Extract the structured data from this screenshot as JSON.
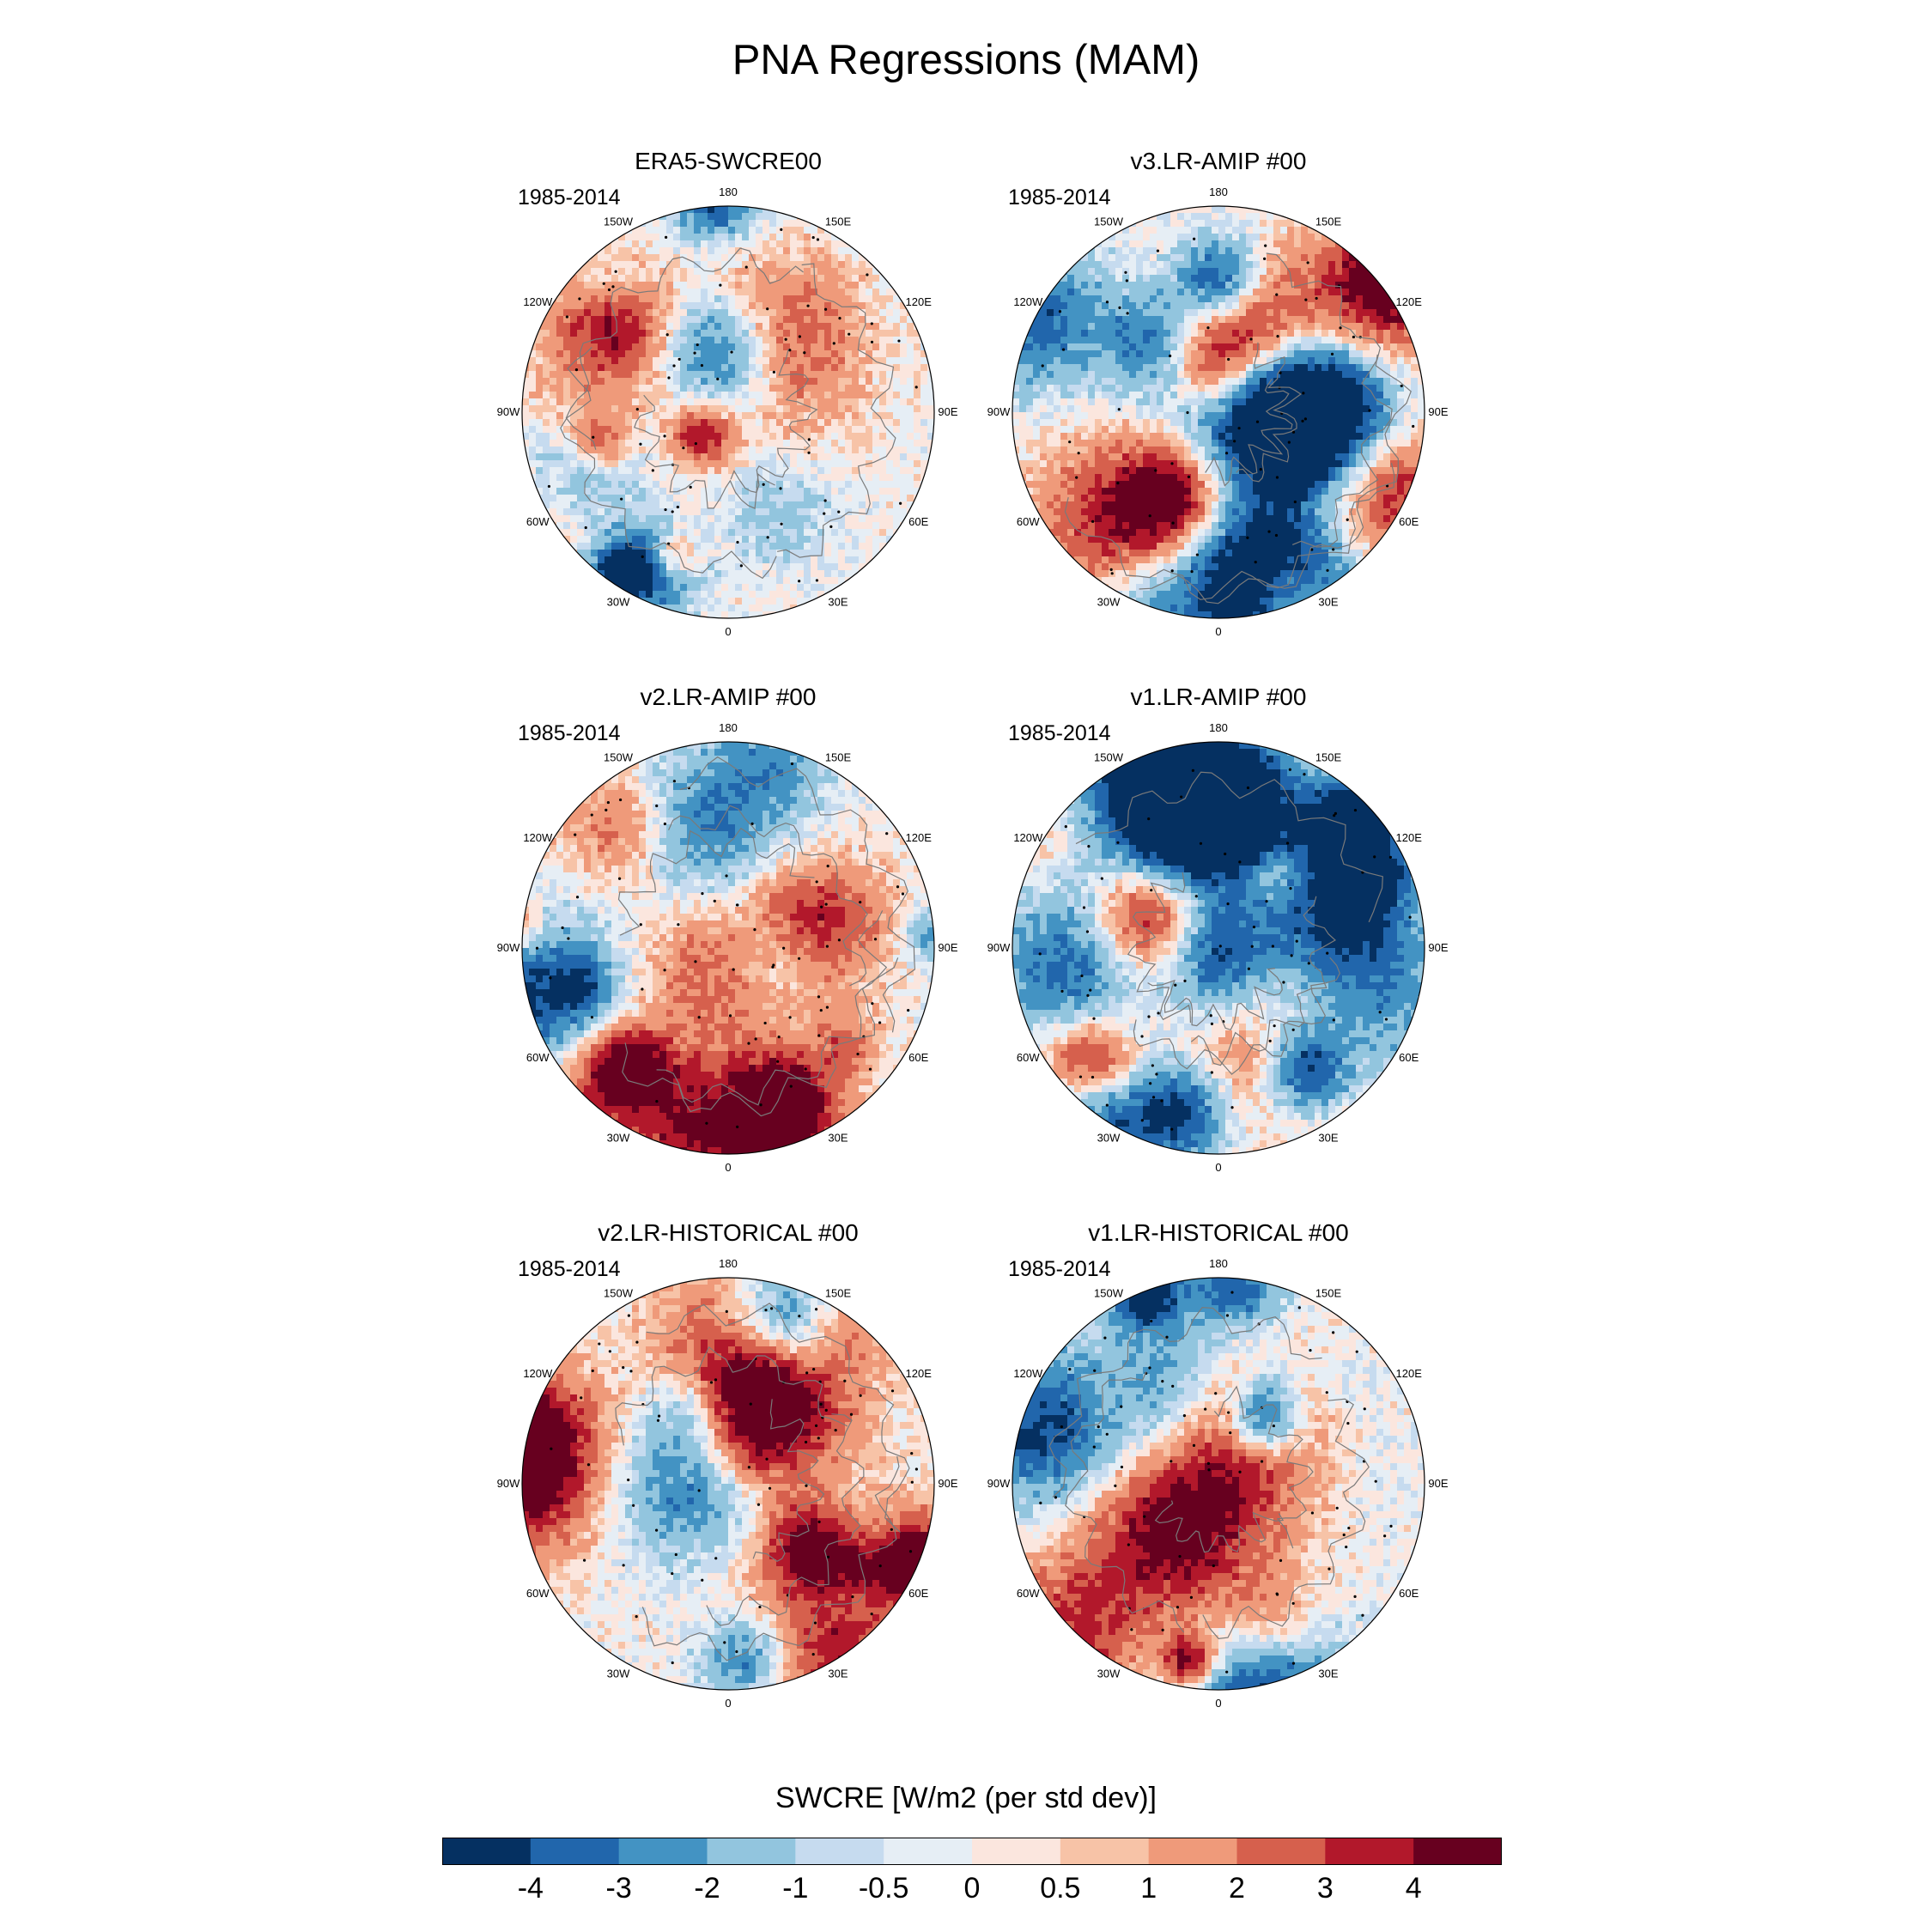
{
  "title": "PNA Regressions (MAM)",
  "colorbar": {
    "title": "SWCRE [W/m2 (per std dev)]",
    "labels": [
      "-4",
      "-3",
      "-2",
      "-1",
      "-0.5",
      "0",
      "0.5",
      "1",
      "2",
      "3",
      "4"
    ],
    "colors": [
      "#053061",
      "#2166ac",
      "#4393c3",
      "#92c5de",
      "#c6dbef",
      "#e6eef5",
      "#fbe6de",
      "#f7c3a7",
      "#ef9a7a",
      "#d6604d",
      "#b2182b",
      "#67001f"
    ]
  },
  "longitude_labels": [
    "180",
    "150E",
    "120E",
    "90E",
    "60E",
    "30E",
    "0",
    "30W",
    "60W",
    "90W",
    "120W",
    "150W"
  ],
  "panels": [
    {
      "title": "ERA5-SWCRE00",
      "years": "1985-2014"
    },
    {
      "title": "v3.LR-AMIP  #00",
      "years": "1985-2014"
    },
    {
      "title": "v2.LR-AMIP  #00",
      "years": "1985-2014"
    },
    {
      "title": "v1.LR-AMIP  #00",
      "years": "1985-2014"
    },
    {
      "title": "v2.LR-HISTORICAL  #00",
      "years": "1985-2014"
    },
    {
      "title": "v1.LR-HISTORICAL  #00",
      "years": "1985-2014"
    }
  ]
}
